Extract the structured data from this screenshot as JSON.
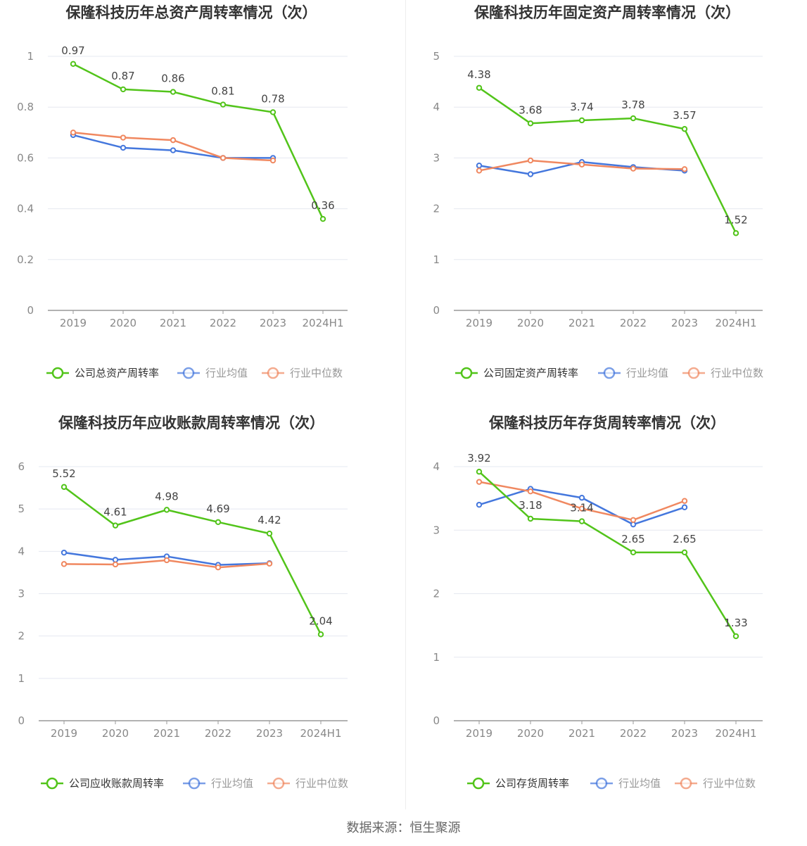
{
  "source": "数据来源：恒生聚源",
  "colors": {
    "company": "#52c41a",
    "avg": "#4477dd",
    "median": "#f08860",
    "grid": "#e5e8f0",
    "axis": "#999999"
  },
  "chart_data": [
    {
      "type": "line",
      "title": "保隆科技历年总资产周转率情况（次）",
      "categories": [
        "2019",
        "2020",
        "2021",
        "2022",
        "2023",
        "2024H1"
      ],
      "ylim": [
        0,
        1
      ],
      "yticks": [
        "0",
        "0.2",
        "0.4",
        "0.6",
        "0.8",
        "1"
      ],
      "series": [
        {
          "name": "公司总资产周转率",
          "key": "company",
          "values": [
            0.97,
            0.87,
            0.86,
            0.81,
            0.78,
            0.36
          ],
          "labels": [
            "0.97",
            "0.87",
            "0.86",
            "0.81",
            "0.78",
            "0.36"
          ]
        },
        {
          "name": "行业均值",
          "key": "avg",
          "values": [
            0.69,
            0.64,
            0.63,
            0.6,
            0.6,
            null
          ]
        },
        {
          "name": "行业中位数",
          "key": "median",
          "values": [
            0.7,
            0.68,
            0.67,
            0.6,
            0.59,
            null
          ]
        }
      ]
    },
    {
      "type": "line",
      "title": "保隆科技历年固定资产周转率情况（次）",
      "categories": [
        "2019",
        "2020",
        "2021",
        "2022",
        "2023",
        "2024H1"
      ],
      "ylim": [
        0,
        5
      ],
      "yticks": [
        "0",
        "1",
        "2",
        "3",
        "4",
        "5"
      ],
      "series": [
        {
          "name": "公司固定资产周转率",
          "key": "company",
          "values": [
            4.38,
            3.68,
            3.74,
            3.78,
            3.57,
            1.52
          ],
          "labels": [
            "4.38",
            "3.68",
            "3.74",
            "3.78",
            "3.57",
            "1.52"
          ]
        },
        {
          "name": "行业均值",
          "key": "avg",
          "values": [
            2.85,
            2.68,
            2.92,
            2.82,
            2.75,
            null
          ]
        },
        {
          "name": "行业中位数",
          "key": "median",
          "values": [
            2.75,
            2.95,
            2.87,
            2.79,
            2.78,
            null
          ]
        }
      ]
    },
    {
      "type": "line",
      "title": "保隆科技历年应收账款周转率情况（次）",
      "categories": [
        "2019",
        "2020",
        "2021",
        "2022",
        "2023",
        "2024H1"
      ],
      "ylim": [
        0,
        6
      ],
      "yticks": [
        "0",
        "1",
        "2",
        "3",
        "4",
        "5",
        "6"
      ],
      "series": [
        {
          "name": "公司应收账款周转率",
          "key": "company",
          "values": [
            5.52,
            4.61,
            4.98,
            4.69,
            4.42,
            2.04
          ],
          "labels": [
            "5.52",
            "4.61",
            "4.98",
            "4.69",
            "4.42",
            "2.04"
          ]
        },
        {
          "name": "行业均值",
          "key": "avg",
          "values": [
            3.97,
            3.8,
            3.88,
            3.68,
            3.72,
            null
          ]
        },
        {
          "name": "行业中位数",
          "key": "median",
          "values": [
            3.7,
            3.69,
            3.79,
            3.62,
            3.71,
            null
          ]
        }
      ]
    },
    {
      "type": "line",
      "title": "保隆科技历年存货周转率情况（次）",
      "categories": [
        "2019",
        "2020",
        "2021",
        "2022",
        "2023",
        "2024H1"
      ],
      "ylim": [
        0,
        4
      ],
      "yticks": [
        "0",
        "1",
        "2",
        "3",
        "4"
      ],
      "series": [
        {
          "name": "公司存货周转率",
          "key": "company",
          "values": [
            3.92,
            3.18,
            3.14,
            2.65,
            2.65,
            1.33
          ],
          "labels": [
            "3.92",
            "3.18",
            "3.14",
            "2.65",
            "2.65",
            "1.33"
          ]
        },
        {
          "name": "行业均值",
          "key": "avg",
          "values": [
            3.4,
            3.65,
            3.51,
            3.09,
            3.36,
            null
          ]
        },
        {
          "name": "行业中位数",
          "key": "median",
          "values": [
            3.76,
            3.61,
            3.34,
            3.16,
            3.46,
            null
          ]
        }
      ]
    }
  ]
}
